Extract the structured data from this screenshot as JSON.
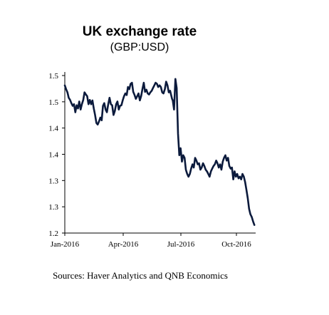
{
  "chart_data": {
    "type": "line",
    "title": "UK exchange rate",
    "subtitle": "(GBP:USD)",
    "xlabel": "",
    "ylabel": "",
    "x_ticks": [
      "Jan-2016",
      "Apr-2016",
      "Jul-2016",
      "Oct-2016"
    ],
    "y_ticks": [
      "1.5",
      "1.5",
      "1.4",
      "1.4",
      "1.3",
      "1.3",
      "1.2"
    ],
    "ylim": [
      1.2,
      1.5
    ],
    "xlim": [
      0,
      290
    ],
    "grid": false,
    "legend": "none",
    "line_color": "#0b1a3c",
    "series": [
      {
        "x": [
          0,
          2,
          4,
          6,
          8,
          10,
          12,
          14,
          16,
          18,
          20,
          22,
          24,
          26,
          28,
          30,
          32,
          34,
          36,
          38,
          40,
          42,
          44,
          46,
          48,
          50,
          52,
          54,
          56,
          58,
          60,
          62,
          64,
          66,
          68,
          70,
          72,
          74,
          76,
          78,
          80,
          82,
          84,
          86,
          88,
          90,
          92,
          94,
          96,
          98,
          100,
          102,
          104,
          106,
          108,
          110,
          112,
          114,
          116,
          118,
          120,
          122,
          124,
          126,
          128,
          130,
          132,
          134,
          136,
          138,
          140,
          142,
          144,
          146,
          148,
          150,
          152,
          154,
          156,
          158,
          160,
          162,
          163,
          164,
          166,
          168,
          170,
          172,
          174,
          176,
          178,
          180,
          182,
          184,
          186,
          188,
          190,
          192,
          194,
          196,
          198,
          200,
          202,
          204,
          206,
          208,
          210,
          212,
          214,
          216,
          218,
          220,
          222,
          224,
          226,
          228,
          230,
          232,
          234,
          236,
          238,
          240,
          242,
          244,
          246,
          248,
          250,
          252,
          254,
          256,
          258,
          260,
          262,
          264,
          266,
          268,
          270,
          272,
          274,
          276,
          278,
          280,
          282,
          284,
          286,
          288
        ],
        "values": [
          1.475,
          1.468,
          1.462,
          1.452,
          1.448,
          1.442,
          1.437,
          1.44,
          1.425,
          1.438,
          1.432,
          1.445,
          1.43,
          1.44,
          1.448,
          1.462,
          1.458,
          1.455,
          1.44,
          1.448,
          1.44,
          1.447,
          1.432,
          1.42,
          1.405,
          1.402,
          1.408,
          1.415,
          1.41,
          1.437,
          1.442,
          1.43,
          1.425,
          1.44,
          1.452,
          1.44,
          1.438,
          1.42,
          1.427,
          1.44,
          1.445,
          1.43,
          1.437,
          1.438,
          1.447,
          1.455,
          1.46,
          1.457,
          1.472,
          1.468,
          1.478,
          1.48,
          1.463,
          1.457,
          1.45,
          1.455,
          1.46,
          1.447,
          1.455,
          1.468,
          1.48,
          1.463,
          1.467,
          1.46,
          1.458,
          1.462,
          1.465,
          1.47,
          1.475,
          1.48,
          1.478,
          1.472,
          1.475,
          1.472,
          1.462,
          1.46,
          1.468,
          1.482,
          1.475,
          1.462,
          1.465,
          1.455,
          1.45,
          1.447,
          1.43,
          1.487,
          1.47,
          1.385,
          1.345,
          1.358,
          1.333,
          1.345,
          1.34,
          1.318,
          1.31,
          1.305,
          1.31,
          1.32,
          1.328,
          1.322,
          1.34,
          1.335,
          1.328,
          1.33,
          1.318,
          1.322,
          1.33,
          1.325,
          1.318,
          1.315,
          1.31,
          1.305,
          1.315,
          1.32,
          1.325,
          1.328,
          1.335,
          1.33,
          1.322,
          1.328,
          1.318,
          1.333,
          1.34,
          1.345,
          1.335,
          1.34,
          1.325,
          1.32,
          1.322,
          1.3,
          1.315,
          1.305,
          1.31,
          1.302,
          1.305,
          1.3,
          1.31,
          1.305,
          1.295,
          1.28,
          1.265,
          1.245,
          1.235,
          1.23,
          1.222,
          1.215
        ]
      }
    ],
    "source_note": "Sources: Haver Analytics and QNB Economics"
  }
}
